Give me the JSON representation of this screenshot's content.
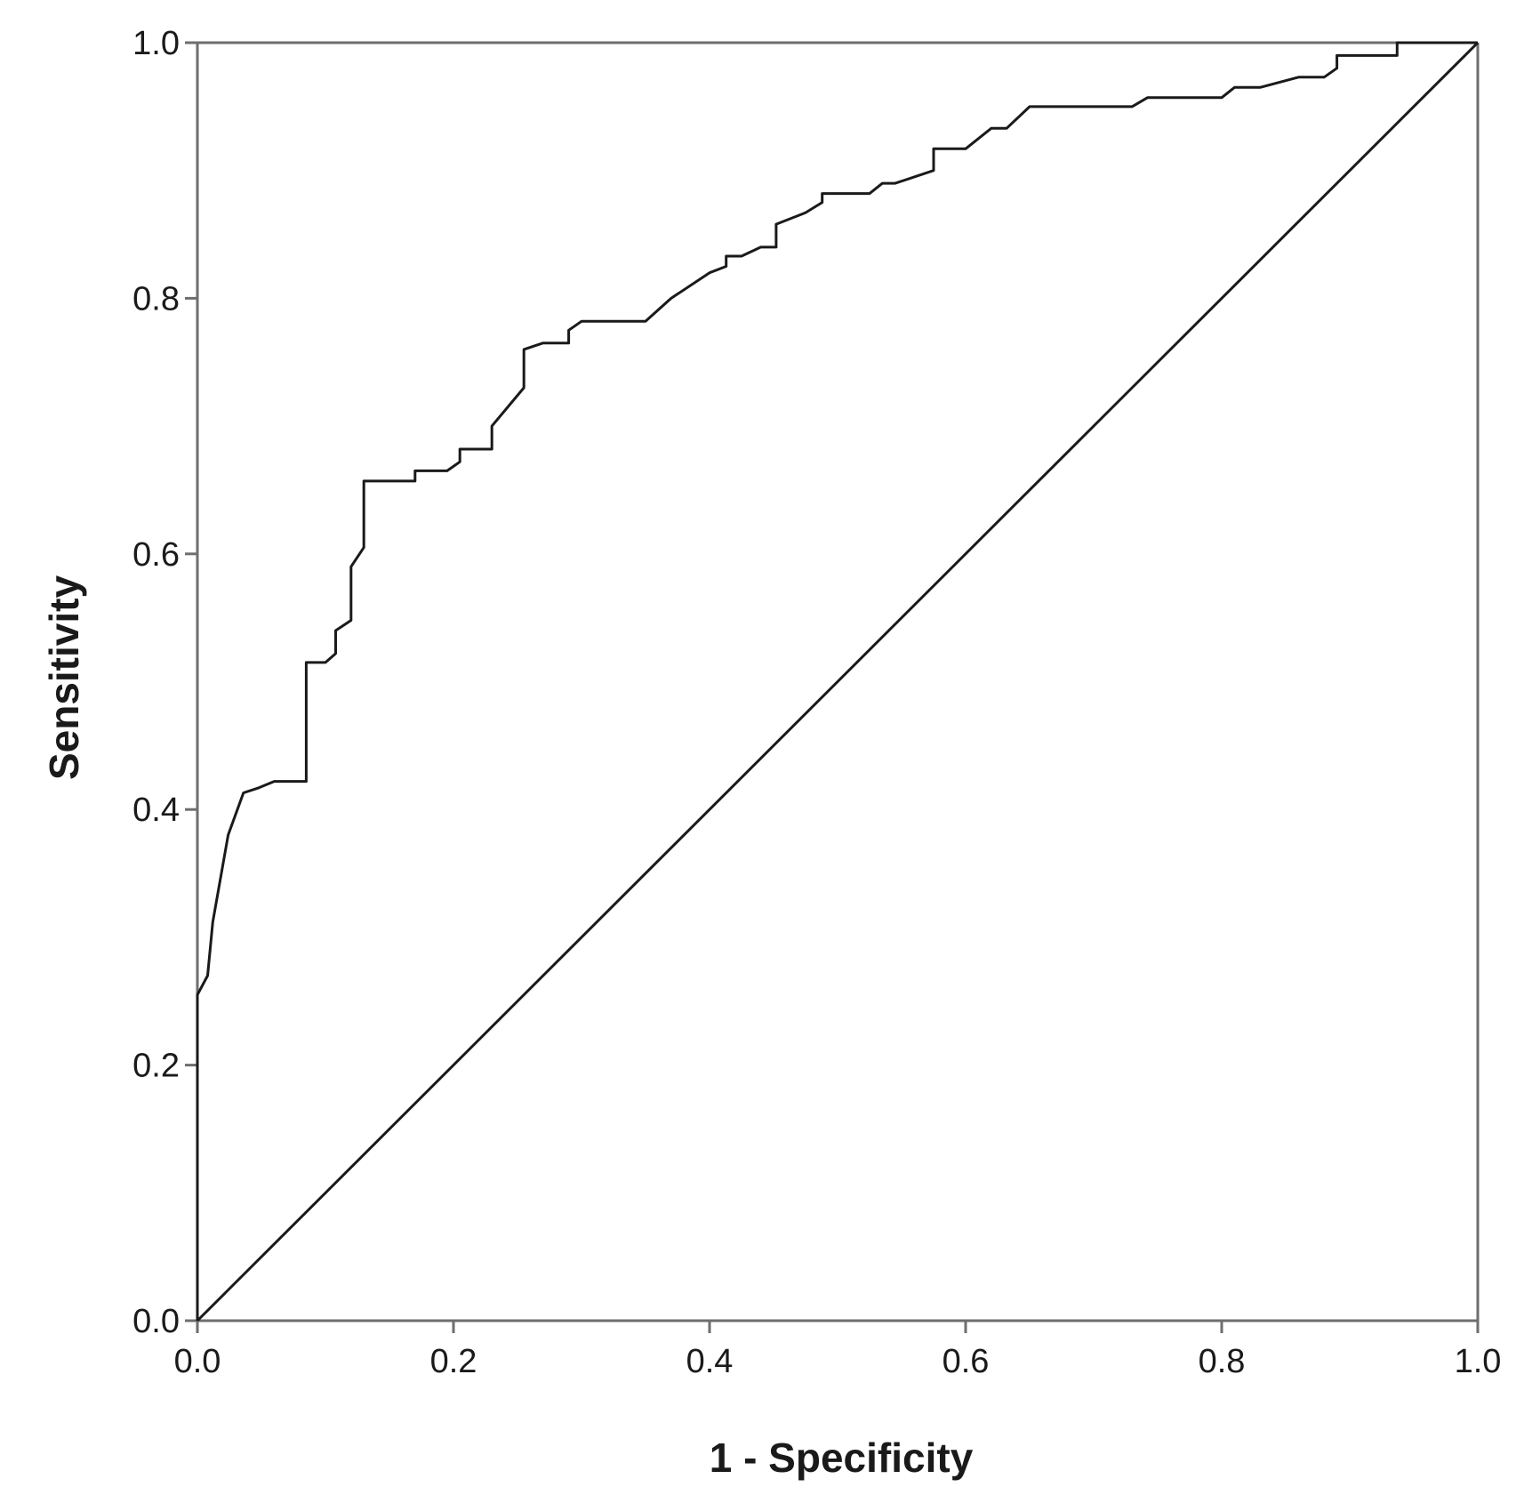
{
  "chart_data": {
    "type": "line",
    "xlabel": "1 - Specificity",
    "ylabel": "Sensitivity",
    "xlim": [
      0,
      1
    ],
    "ylim": [
      0,
      1
    ],
    "xticks": [
      "0.0",
      "0.2",
      "0.4",
      "0.6",
      "0.8",
      "1.0"
    ],
    "yticks": [
      "0.0",
      "0.2",
      "0.4",
      "0.6",
      "0.8",
      "1.0"
    ],
    "grid": false,
    "legend": "none",
    "series": [
      {
        "x": [
          0,
          0,
          0.008,
          0.008,
          0.012,
          0.012,
          0.024,
          0.024,
          0.036,
          0.036,
          0.048,
          0.06,
          0.085,
          0.085,
          0.1,
          0.108,
          0.108,
          0.12,
          0.12,
          0.13,
          0.13,
          0.17,
          0.17,
          0.195,
          0.205,
          0.205,
          0.23,
          0.23,
          0.255,
          0.255,
          0.27,
          0.29,
          0.29,
          0.3,
          0.35,
          0.37,
          0.4,
          0.413,
          0.413,
          0.425,
          0.44,
          0.452,
          0.452,
          0.47,
          0.475,
          0.488,
          0.488,
          0.525,
          0.535,
          0.545,
          0.575,
          0.575,
          0.6,
          0.61,
          0.61,
          0.62,
          0.62,
          0.632,
          0.65,
          0.73,
          0.742,
          0.8,
          0.81,
          0.83,
          0.86,
          0.88,
          0.89,
          0.89,
          0.937,
          0.937,
          1
        ],
        "y": [
          0,
          0.255,
          0.27,
          0.27,
          0.312,
          0.312,
          0.38,
          0.38,
          0.413,
          0.413,
          0.417,
          0.422,
          0.422,
          0.515,
          0.515,
          0.522,
          0.54,
          0.548,
          0.59,
          0.605,
          0.657,
          0.657,
          0.665,
          0.665,
          0.672,
          0.682,
          0.682,
          0.7,
          0.73,
          0.76,
          0.765,
          0.765,
          0.775,
          0.782,
          0.782,
          0.8,
          0.82,
          0.825,
          0.833,
          0.833,
          0.84,
          0.84,
          0.858,
          0.865,
          0.867,
          0.875,
          0.882,
          0.882,
          0.89,
          0.89,
          0.9,
          0.917,
          0.917,
          0.925,
          0.925,
          0.933,
          0.933,
          0.933,
          0.95,
          0.95,
          0.957,
          0.957,
          0.965,
          0.965,
          0.973,
          0.973,
          0.98,
          0.99,
          0.99,
          1,
          1
        ]
      },
      {
        "x": [
          0,
          1
        ],
        "y": [
          0,
          1
        ]
      }
    ]
  }
}
